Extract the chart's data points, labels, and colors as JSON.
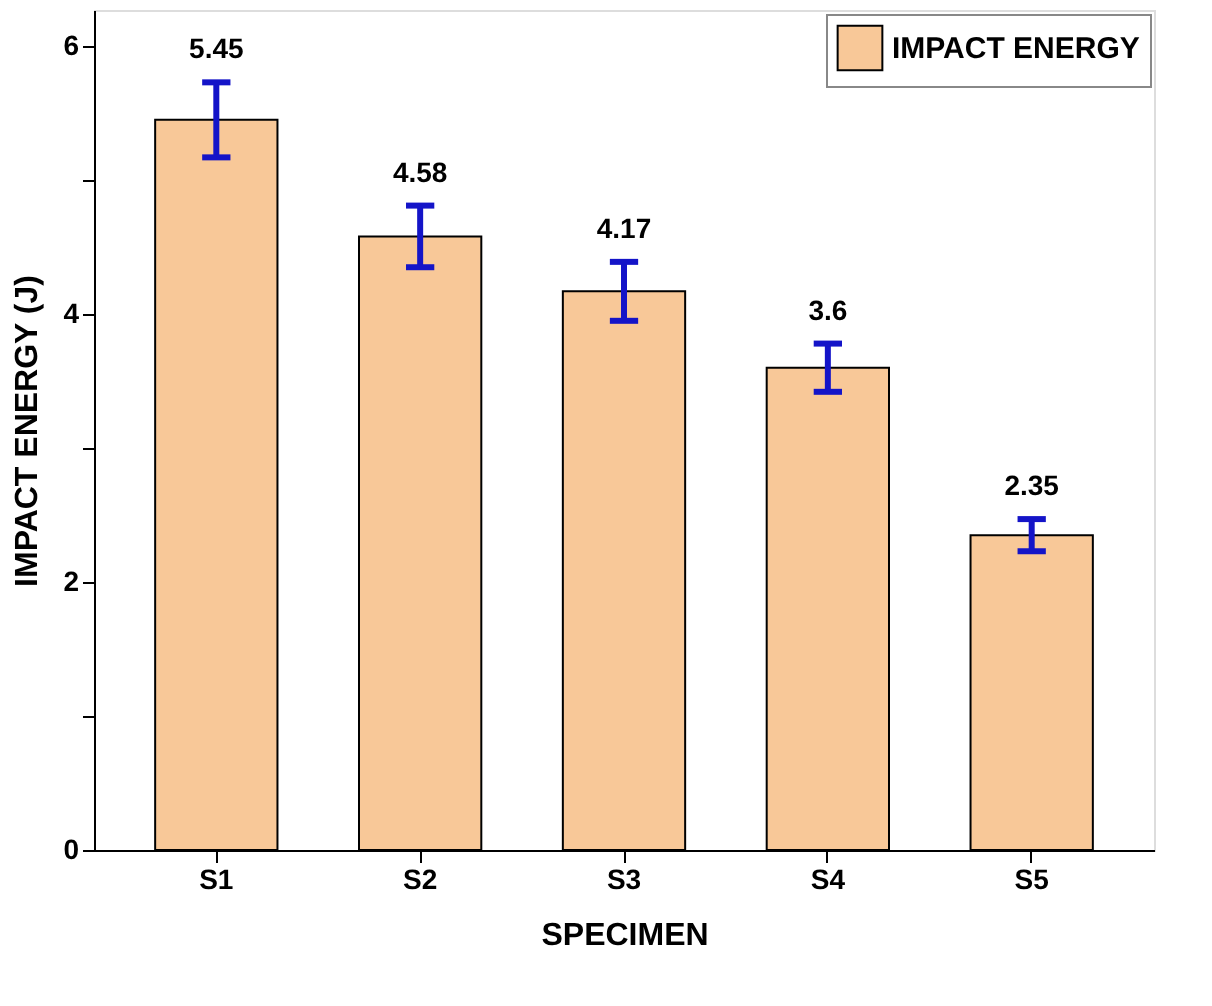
{
  "chart_data": {
    "type": "bar",
    "xlabel": "SPECIMEN",
    "ylabel": "IMPACT ENERGY (J)",
    "categories": [
      "S1",
      "S2",
      "S3",
      "S4",
      "S5"
    ],
    "series": [
      {
        "name": "IMPACT ENERGY",
        "color": "#f8c898",
        "values": [
          5.45,
          4.58,
          4.17,
          3.6,
          2.35
        ],
        "errors": [
          0.28,
          0.23,
          0.22,
          0.18,
          0.12
        ]
      }
    ],
    "data_labels": true,
    "ylim": [
      0,
      6.27
    ],
    "yticks": [
      0,
      {
        "value": 1,
        "label": null
      },
      2,
      {
        "value": 3,
        "label": null
      },
      4,
      {
        "value": 5,
        "label": null
      },
      6
    ],
    "grid": false,
    "legend": "top right"
  }
}
